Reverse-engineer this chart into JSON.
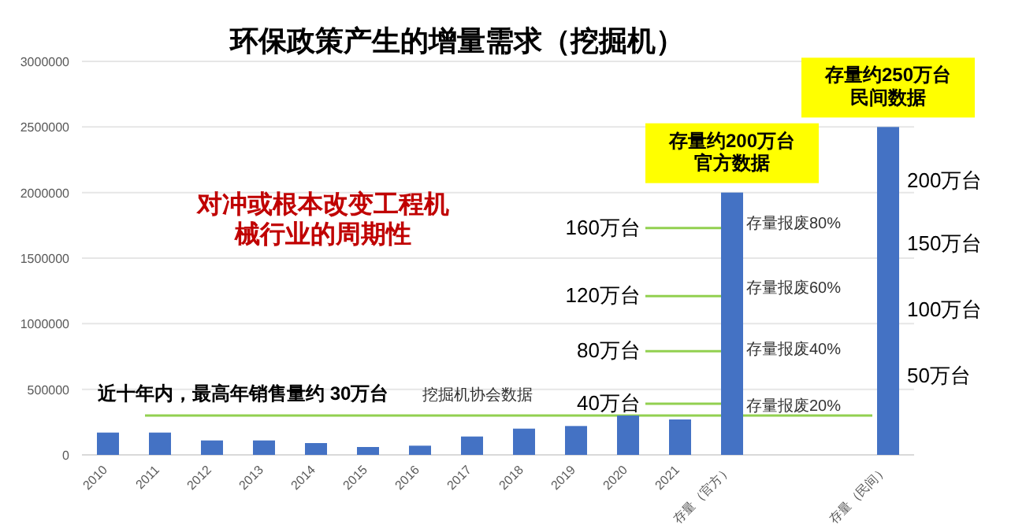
{
  "chart_data": {
    "type": "bar",
    "title": "环保政策产生的增量需求（挖掘机）",
    "categories": [
      "2010",
      "2011",
      "2012",
      "2013",
      "2014",
      "2015",
      "2016",
      "2017",
      "2018",
      "2019",
      "2020",
      "2021",
      "存量（官方）",
      null,
      null,
      "存量（民间）"
    ],
    "values": [
      170000,
      170000,
      110000,
      110000,
      90000,
      60000,
      70000,
      140000,
      200000,
      220000,
      300000,
      270000,
      2000000,
      null,
      null,
      2500000
    ],
    "color": "#4472c4",
    "ylim": [
      0,
      3000000
    ],
    "yticks": [
      0,
      500000,
      1000000,
      1500000,
      2000000,
      2500000,
      3000000
    ],
    "grid": "y",
    "ref_lines": [
      {
        "axis": "y",
        "value": 300000,
        "label": "近十年内，最高年销售量约 30万台",
        "color": "#92d050"
      },
      {
        "axis": "y",
        "value": 390000,
        "label": "40万台",
        "color": "#92d050"
      },
      {
        "axis": "y",
        "value": 790000,
        "label": "80万台",
        "color": "#92d050"
      },
      {
        "axis": "y",
        "value": 1210000,
        "label": "120万台",
        "color": "#92d050"
      },
      {
        "axis": "y",
        "value": 1730000,
        "label": "160万台",
        "color": "#92d050"
      }
    ],
    "annotations": [
      "对冲或根本改变工程机械行业的周期性",
      "挖掘机协会数据",
      {
        "text": "存量约200万台官方数据",
        "x": "存量（官方）",
        "y": 2000000
      },
      {
        "text": "存量约250万台民间数据",
        "x": "存量（民间）",
        "y": 2500000
      },
      "存量报废20%",
      "存量报废40%",
      "存量报废60%",
      "存量报废80%",
      "50万台",
      "100万台",
      "150万台",
      "200万台"
    ]
  }
}
